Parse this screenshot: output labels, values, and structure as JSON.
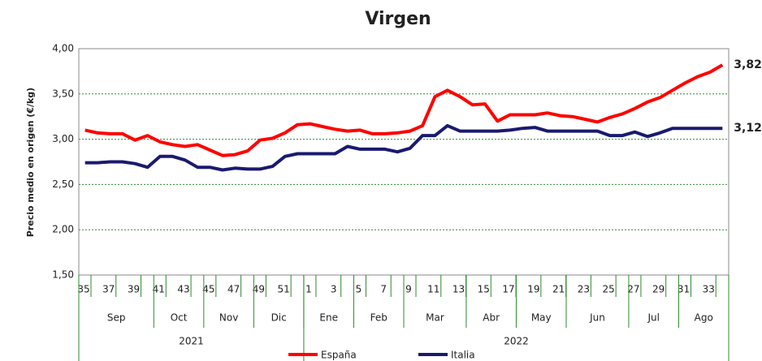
{
  "chart_data": {
    "type": "line",
    "title": "Virgen",
    "y_label": "Precio medio en origen (€/kg)",
    "categories": [
      "35",
      null,
      "37",
      null,
      "39",
      null,
      "41",
      null,
      "43",
      null,
      "45",
      null,
      "47",
      null,
      "49",
      null,
      "51",
      null,
      "1",
      null,
      "3",
      null,
      "5",
      null,
      "7",
      null,
      "9",
      null,
      "11",
      null,
      "13",
      null,
      "15",
      null,
      "17",
      null,
      "19",
      null,
      "21",
      null,
      "23",
      null,
      "25",
      null,
      "27",
      null,
      "29",
      null,
      "31",
      null,
      "33",
      null
    ],
    "months": [
      "Sep",
      "Oct",
      "Nov",
      "Dic",
      "Ene",
      "Feb",
      "Mar",
      "Abr",
      "May",
      "Jun",
      "Jul",
      "Ago"
    ],
    "years": [
      "2021",
      "2022"
    ],
    "series": [
      {
        "name": "España",
        "color": "#ff0000",
        "end_label": "3,82",
        "values": [
          3.1,
          3.07,
          3.06,
          3.06,
          2.99,
          3.04,
          2.97,
          2.94,
          2.92,
          2.94,
          2.88,
          2.82,
          2.83,
          2.87,
          2.99,
          3.01,
          3.07,
          3.16,
          3.17,
          3.14,
          3.11,
          3.09,
          3.1,
          3.06,
          3.06,
          3.07,
          3.09,
          3.15,
          3.47,
          3.54,
          3.47,
          3.38,
          3.39,
          3.2,
          3.27,
          3.27,
          3.27,
          3.29,
          3.26,
          3.25,
          3.22,
          3.19,
          3.24,
          3.28,
          3.34,
          3.41,
          3.46,
          3.54,
          3.62,
          3.69,
          3.74,
          3.82
        ]
      },
      {
        "name": "Italia",
        "color": "#1a1a70",
        "end_label": "3,12",
        "values": [
          2.74,
          2.74,
          2.75,
          2.75,
          2.73,
          2.69,
          2.81,
          2.81,
          2.77,
          2.69,
          2.69,
          2.66,
          2.68,
          2.67,
          2.67,
          2.7,
          2.81,
          2.84,
          2.84,
          2.84,
          2.84,
          2.92,
          2.89,
          2.89,
          2.89,
          2.86,
          2.9,
          3.04,
          3.04,
          3.15,
          3.09,
          3.09,
          3.09,
          3.09,
          3.1,
          3.12,
          3.13,
          3.09,
          3.09,
          3.09,
          3.09,
          3.09,
          3.04,
          3.04,
          3.08,
          3.03,
          3.07,
          3.12,
          3.12,
          3.12,
          3.12,
          3.12
        ]
      }
    ],
    "ylim": [
      1.5,
      4.0
    ],
    "yticks": [
      {
        "value": 1.5,
        "label": "1,50"
      },
      {
        "value": 2.0,
        "label": "2,00"
      },
      {
        "value": 2.5,
        "label": "2,50"
      },
      {
        "value": 3.0,
        "label": "3,00"
      },
      {
        "value": 3.5,
        "label": "3,50"
      },
      {
        "value": 4.0,
        "label": "4,00"
      }
    ],
    "grid": true,
    "legend": "bottom"
  }
}
